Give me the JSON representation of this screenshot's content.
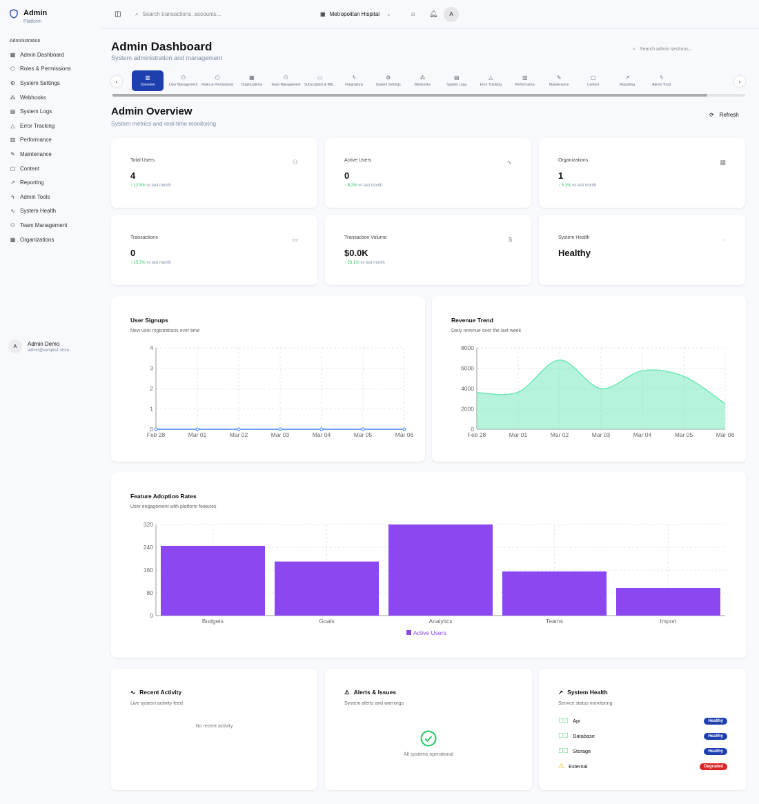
{
  "sidebar": {
    "title": "Admin",
    "subtitle": "Platform",
    "section": "Administration",
    "items": [
      {
        "label": "Admin Dashboard",
        "icon": "grid-icon"
      },
      {
        "label": "Roles & Permissions",
        "icon": "shield-icon"
      },
      {
        "label": "System Settings",
        "icon": "gear-icon"
      },
      {
        "label": "Webhooks",
        "icon": "webhook-icon"
      },
      {
        "label": "System Logs",
        "icon": "file-icon"
      },
      {
        "label": "Error Tracking",
        "icon": "warning-icon"
      },
      {
        "label": "Performance",
        "icon": "bar-chart-icon"
      },
      {
        "label": "Maintenance",
        "icon": "wrench-icon"
      },
      {
        "label": "Content",
        "icon": "message-icon"
      },
      {
        "label": "Reporting",
        "icon": "trending-icon"
      },
      {
        "label": "Admin Tools",
        "icon": "zap-icon"
      },
      {
        "label": "System Health",
        "icon": "activity-icon"
      },
      {
        "label": "Team Management",
        "icon": "users-icon"
      },
      {
        "label": "Organizations",
        "icon": "building-icon"
      }
    ],
    "user": {
      "initial": "A",
      "name": "Admin Demo",
      "email": "admin@sample1.store"
    }
  },
  "topbar": {
    "search_placeholder": "Search transactions, accounts...",
    "org": "Metropolitan Hispital",
    "avatar": "A"
  },
  "header": {
    "title": "Admin Dashboard",
    "subtitle": "System administration and management",
    "search_placeholder": "Search admin sections..."
  },
  "tabs": [
    {
      "label": "Overview",
      "icon": "▥",
      "active": true
    },
    {
      "label": "User Management",
      "icon": "⚇"
    },
    {
      "label": "Roles & Permissions",
      "icon": "⬡"
    },
    {
      "label": "Organizations",
      "icon": "▦"
    },
    {
      "label": "Team Management",
      "icon": "⚇"
    },
    {
      "label": "Subscription & Billi...",
      "icon": "▭"
    },
    {
      "label": "Integrations",
      "icon": "ϟ"
    },
    {
      "label": "System Settings",
      "icon": "⚙"
    },
    {
      "label": "Webhooks",
      "icon": "⁂"
    },
    {
      "label": "System Logs",
      "icon": "▤"
    },
    {
      "label": "Error Tracking",
      "icon": "△"
    },
    {
      "label": "Performance",
      "icon": "▥"
    },
    {
      "label": "Maintenance",
      "icon": "✎"
    },
    {
      "label": "Content",
      "icon": "▢"
    },
    {
      "label": "Reporting",
      "icon": "↗"
    },
    {
      "label": "Admin Tools",
      "icon": "ϟ"
    }
  ],
  "overview": {
    "title": "Admin Overview",
    "subtitle": "System metrics and real-time monitoring",
    "refresh": "Refresh"
  },
  "stats": [
    {
      "label": "Total Users",
      "value": "4",
      "change": "12.5%",
      "suffix": "vs last month",
      "icon": "users-icon",
      "glyph": "⚇"
    },
    {
      "label": "Active Users",
      "value": "0",
      "change": "8.2%",
      "suffix": "vs last month",
      "icon": "activity-icon",
      "glyph": "∿"
    },
    {
      "label": "Organizations",
      "value": "1",
      "change": "5.1%",
      "suffix": "vs last month",
      "icon": "building-icon",
      "glyph": "▦"
    },
    {
      "label": "Transactions",
      "value": "0",
      "change": "15.3%",
      "suffix": "vs last month",
      "icon": "credit-card-icon",
      "glyph": "▭"
    },
    {
      "label": "Transaction Volume",
      "value": "$0.0K",
      "change": "23.1%",
      "suffix": "vs last month",
      "icon": "dollar-icon",
      "glyph": "$"
    },
    {
      "label": "System Health",
      "value": "Healthy",
      "icon": "check-circle-icon",
      "glyph": "◌"
    }
  ],
  "chart_data": [
    {
      "type": "line",
      "title": "User Signups",
      "subtitle": "New user registrations over time",
      "x": [
        "Feb 28",
        "Mar 01",
        "Mar 02",
        "Mar 03",
        "Mar 04",
        "Mar 05",
        "Mar 06"
      ],
      "values": [
        0,
        0,
        0,
        0,
        0,
        0,
        0
      ],
      "ylim": [
        0,
        4
      ],
      "yticks": [
        0,
        1,
        2,
        3,
        4
      ],
      "grid": true,
      "color": "#3b82f6"
    },
    {
      "type": "area",
      "title": "Revenue Trend",
      "subtitle": "Daily revenue over the last week",
      "x": [
        "Feb 28",
        "Mar 01",
        "Mar 02",
        "Mar 03",
        "Mar 04",
        "Mar 05",
        "Mar 06"
      ],
      "values": [
        3600,
        3650,
        6800,
        4000,
        5750,
        5200,
        2500
      ],
      "ylim": [
        0,
        8000
      ],
      "yticks": [
        0,
        2000,
        4000,
        6000,
        8000
      ],
      "grid": true,
      "color": "#6ee7b7"
    },
    {
      "type": "bar",
      "title": "Feature Adoption Rates",
      "subtitle": "User engagement with platform features",
      "categories": [
        "Budgets",
        "Goals",
        "Analytics",
        "Teams",
        "Import"
      ],
      "series": [
        {
          "name": "Active Users",
          "values": [
            245,
            190,
            320,
            155,
            97
          ]
        }
      ],
      "ylim": [
        0,
        320
      ],
      "yticks": [
        0,
        80,
        160,
        240,
        320
      ],
      "grid": true,
      "legend": "bottom",
      "color": "#8b47f0"
    }
  ],
  "activity": {
    "title": "Recent Activity",
    "subtitle": "Live system activity feed",
    "empty": "No recent activity"
  },
  "alerts": {
    "title": "Alerts & Issues",
    "subtitle": "System alerts and warnings",
    "empty": "All systems operational"
  },
  "health": {
    "title": "System Health",
    "subtitle": "Service status monitoring",
    "services": [
      {
        "name": "Api",
        "status": "Healthy",
        "color": "#1e40af"
      },
      {
        "name": "Database",
        "status": "Healthy",
        "color": "#1e40af"
      },
      {
        "name": "Storage",
        "status": "Healthy",
        "color": "#1e40af"
      },
      {
        "name": "External",
        "status": "Degraded",
        "color": "#dc2626"
      }
    ]
  }
}
